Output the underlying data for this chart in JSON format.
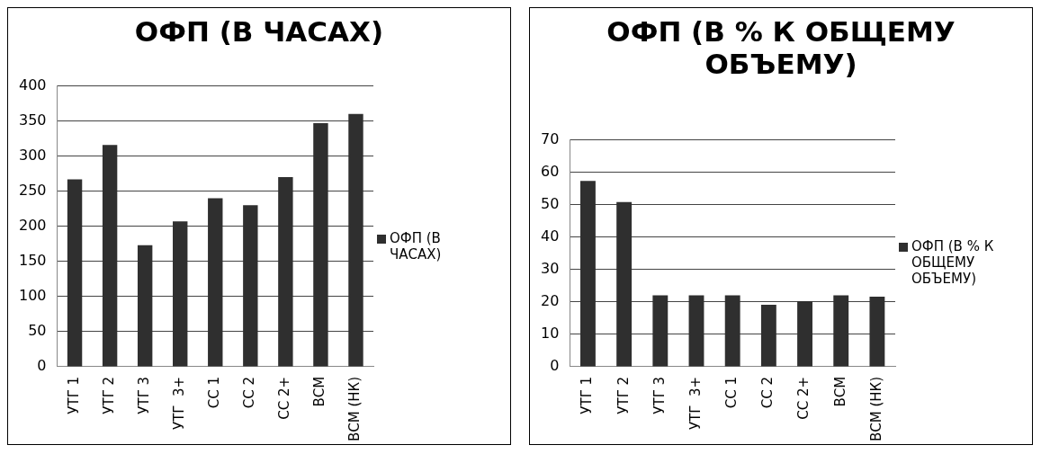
{
  "chart_data": [
    {
      "type": "bar",
      "title": "ОФП (В ЧАСАХ)",
      "categories": [
        "УТГ 1",
        "УТГ 2",
        "УТГ 3",
        "УТГ  3+",
        "СС 1",
        "СС 2",
        "СС 2+",
        "ВСМ",
        "ВСМ (НК)"
      ],
      "series": [
        {
          "name": "ОФП (В ЧАСАХ)",
          "color": "#2f2f2f",
          "values": [
            267,
            316,
            173,
            207,
            240,
            230,
            270,
            347,
            360
          ]
        }
      ],
      "ylim": [
        0,
        400
      ],
      "yticks": [
        0,
        50,
        100,
        150,
        200,
        250,
        300,
        350,
        400
      ],
      "grid": "y",
      "legend": "right"
    },
    {
      "type": "bar",
      "title": "ОФП (В % К ОБЩЕМУ ОБЪЕМУ)",
      "categories": [
        "УТГ 1",
        "УТГ 2",
        "УТГ 3",
        "УТГ  3+",
        "СС 1",
        "СС 2",
        "СС 2+",
        "ВСМ",
        "ВСМ (НК)"
      ],
      "series": [
        {
          "name": "ОФП (В % К ОБЩЕМУ ОБЪЕМУ)",
          "color": "#2f2f2f",
          "values": [
            57.3,
            50.8,
            22,
            22,
            22,
            19.1,
            20.2,
            22,
            21.6
          ]
        }
      ],
      "ylim": [
        0,
        70
      ],
      "yticks": [
        0,
        10,
        20,
        30,
        40,
        50,
        60,
        70
      ],
      "grid": "y",
      "legend": "right"
    }
  ]
}
